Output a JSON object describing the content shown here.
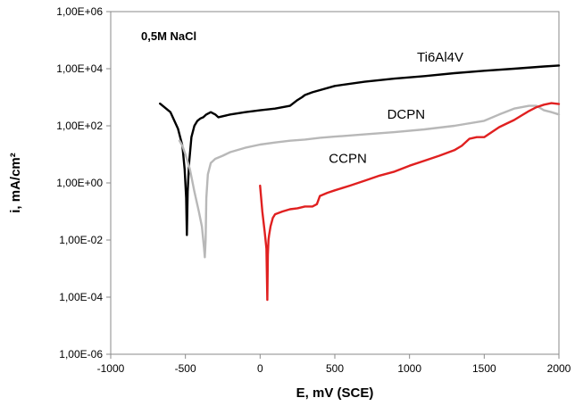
{
  "chart_data": {
    "type": "line",
    "title": "",
    "annotation": "0,5M NaCl",
    "xlabel": "E, mV  (SCE)",
    "ylabel": "i, mA/cm²",
    "xlim": [
      -1000,
      2000
    ],
    "ylim": [
      1e-06,
      1000000
    ],
    "yscale": "log",
    "grid": false,
    "legend": "none (series labelled directly on plot)",
    "x_ticks": [
      {
        "value": -1000,
        "label": "-1000"
      },
      {
        "value": -500,
        "label": "-500"
      },
      {
        "value": 0,
        "label": "0"
      },
      {
        "value": 500,
        "label": "500"
      },
      {
        "value": 1000,
        "label": "1000"
      },
      {
        "value": 1500,
        "label": "1500"
      },
      {
        "value": 2000,
        "label": "2000"
      }
    ],
    "y_ticks": [
      {
        "value": 1000000,
        "label": "1,00E+06"
      },
      {
        "value": 10000,
        "label": "1,00E+04"
      },
      {
        "value": 100,
        "label": "1,00E+02"
      },
      {
        "value": 1,
        "label": "1,00E+00"
      },
      {
        "value": 0.01,
        "label": "1,00E-02"
      },
      {
        "value": 0.0001,
        "label": "1,00E-04"
      },
      {
        "value": 1e-06,
        "label": "1,00E-06"
      }
    ],
    "series": [
      {
        "name": "Ti6Al4V",
        "color": "#000000",
        "x": [
          -670,
          -600,
          -550,
          -520,
          -505,
          -495,
          -490,
          -485,
          -475,
          -460,
          -440,
          -420,
          -400,
          -380,
          -360,
          -330,
          -300,
          -280,
          -200,
          -100,
          0,
          100,
          200,
          250,
          280,
          300,
          350,
          500,
          700,
          900,
          1100,
          1300,
          1500,
          1700,
          1900,
          2000
        ],
        "y": [
          600,
          300,
          80,
          20,
          3,
          0.3,
          0.015,
          0.5,
          5,
          40,
          100,
          150,
          180,
          200,
          250,
          300,
          250,
          200,
          250,
          300,
          350,
          400,
          500,
          800,
          1000,
          1200,
          1500,
          2500,
          3500,
          4500,
          5500,
          7000,
          8500,
          10000,
          12000,
          13000
        ]
      },
      {
        "name": "DCPN",
        "color": "#b8b8b8",
        "x": [
          -540,
          -520,
          -500,
          -470,
          -440,
          -410,
          -390,
          -375,
          -370,
          -365,
          -360,
          -350,
          -330,
          -300,
          -250,
          -200,
          -100,
          0,
          100,
          200,
          300,
          400,
          500,
          700,
          900,
          1100,
          1300,
          1500,
          1600,
          1700,
          1800,
          1850,
          1900,
          1950,
          2000
        ],
        "y": [
          30,
          20,
          10,
          3,
          0.5,
          0.1,
          0.03,
          0.005,
          0.0025,
          0.01,
          0.3,
          2,
          5,
          7,
          9,
          12,
          17,
          22,
          26,
          30,
          33,
          38,
          42,
          50,
          60,
          75,
          100,
          150,
          250,
          400,
          500,
          500,
          350,
          300,
          250
        ]
      },
      {
        "name": "CCPN",
        "color": "#e02020",
        "x": [
          0,
          15,
          30,
          42,
          48,
          52,
          56,
          60,
          70,
          85,
          100,
          150,
          200,
          250,
          300,
          350,
          380,
          400,
          450,
          500,
          600,
          700,
          800,
          900,
          1000,
          1100,
          1200,
          1300,
          1350,
          1400,
          1450,
          1500,
          1550,
          1600,
          1650,
          1700,
          1750,
          1800,
          1850,
          1900,
          1950,
          2000
        ],
        "y": [
          0.8,
          0.1,
          0.02,
          0.005,
          8e-05,
          0.003,
          0.01,
          0.015,
          0.03,
          0.06,
          0.08,
          0.1,
          0.12,
          0.13,
          0.15,
          0.15,
          0.18,
          0.35,
          0.45,
          0.55,
          0.8,
          1.2,
          1.8,
          2.5,
          4,
          6,
          9,
          14,
          20,
          35,
          40,
          40,
          60,
          90,
          120,
          160,
          230,
          330,
          450,
          550,
          620,
          580
        ]
      }
    ]
  }
}
